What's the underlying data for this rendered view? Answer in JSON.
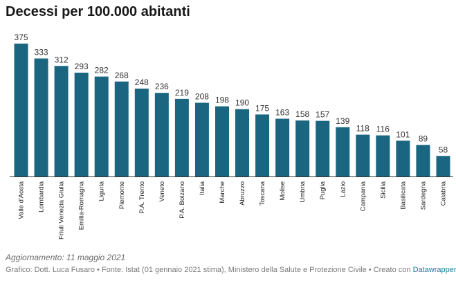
{
  "header": {
    "title": "Decessi per 100.000 abitanti"
  },
  "footer": {
    "note": "Aggiornamento: 11 maggio 2021",
    "credits_text": "Grafico: Dott. Luca Fusaro • Fonte: Istat (01 gennaio 2021 stima), Ministero della Salute e Protezione Civile • Creato con",
    "credits_link": "Datawrapper"
  },
  "colors": {
    "bar": "#1a6680",
    "axis": "#333333"
  },
  "chart_data": {
    "type": "bar",
    "title": "Decessi per 100.000 abitanti",
    "xlabel": "",
    "ylabel": "",
    "ylim": [
      0,
      375
    ],
    "grid": false,
    "categories": [
      "Valle d'Aosta",
      "Lombardia",
      "Friuli Venezia Giulia",
      "Emilia-Romagna",
      "Liguria",
      "Piemonte",
      "P.A. Trento",
      "Veneto",
      "P.A. Bolzano",
      "Italia",
      "Marche",
      "Abruzzo",
      "Toscana",
      "Molise",
      "Umbria",
      "Puglia",
      "Lazio",
      "Campania",
      "Sicilia",
      "Basilicata",
      "Sardegna",
      "Calabria"
    ],
    "values": [
      375,
      333,
      312,
      293,
      282,
      268,
      248,
      236,
      219,
      208,
      198,
      190,
      175,
      163,
      158,
      157,
      139,
      118,
      116,
      101,
      89,
      58
    ]
  }
}
